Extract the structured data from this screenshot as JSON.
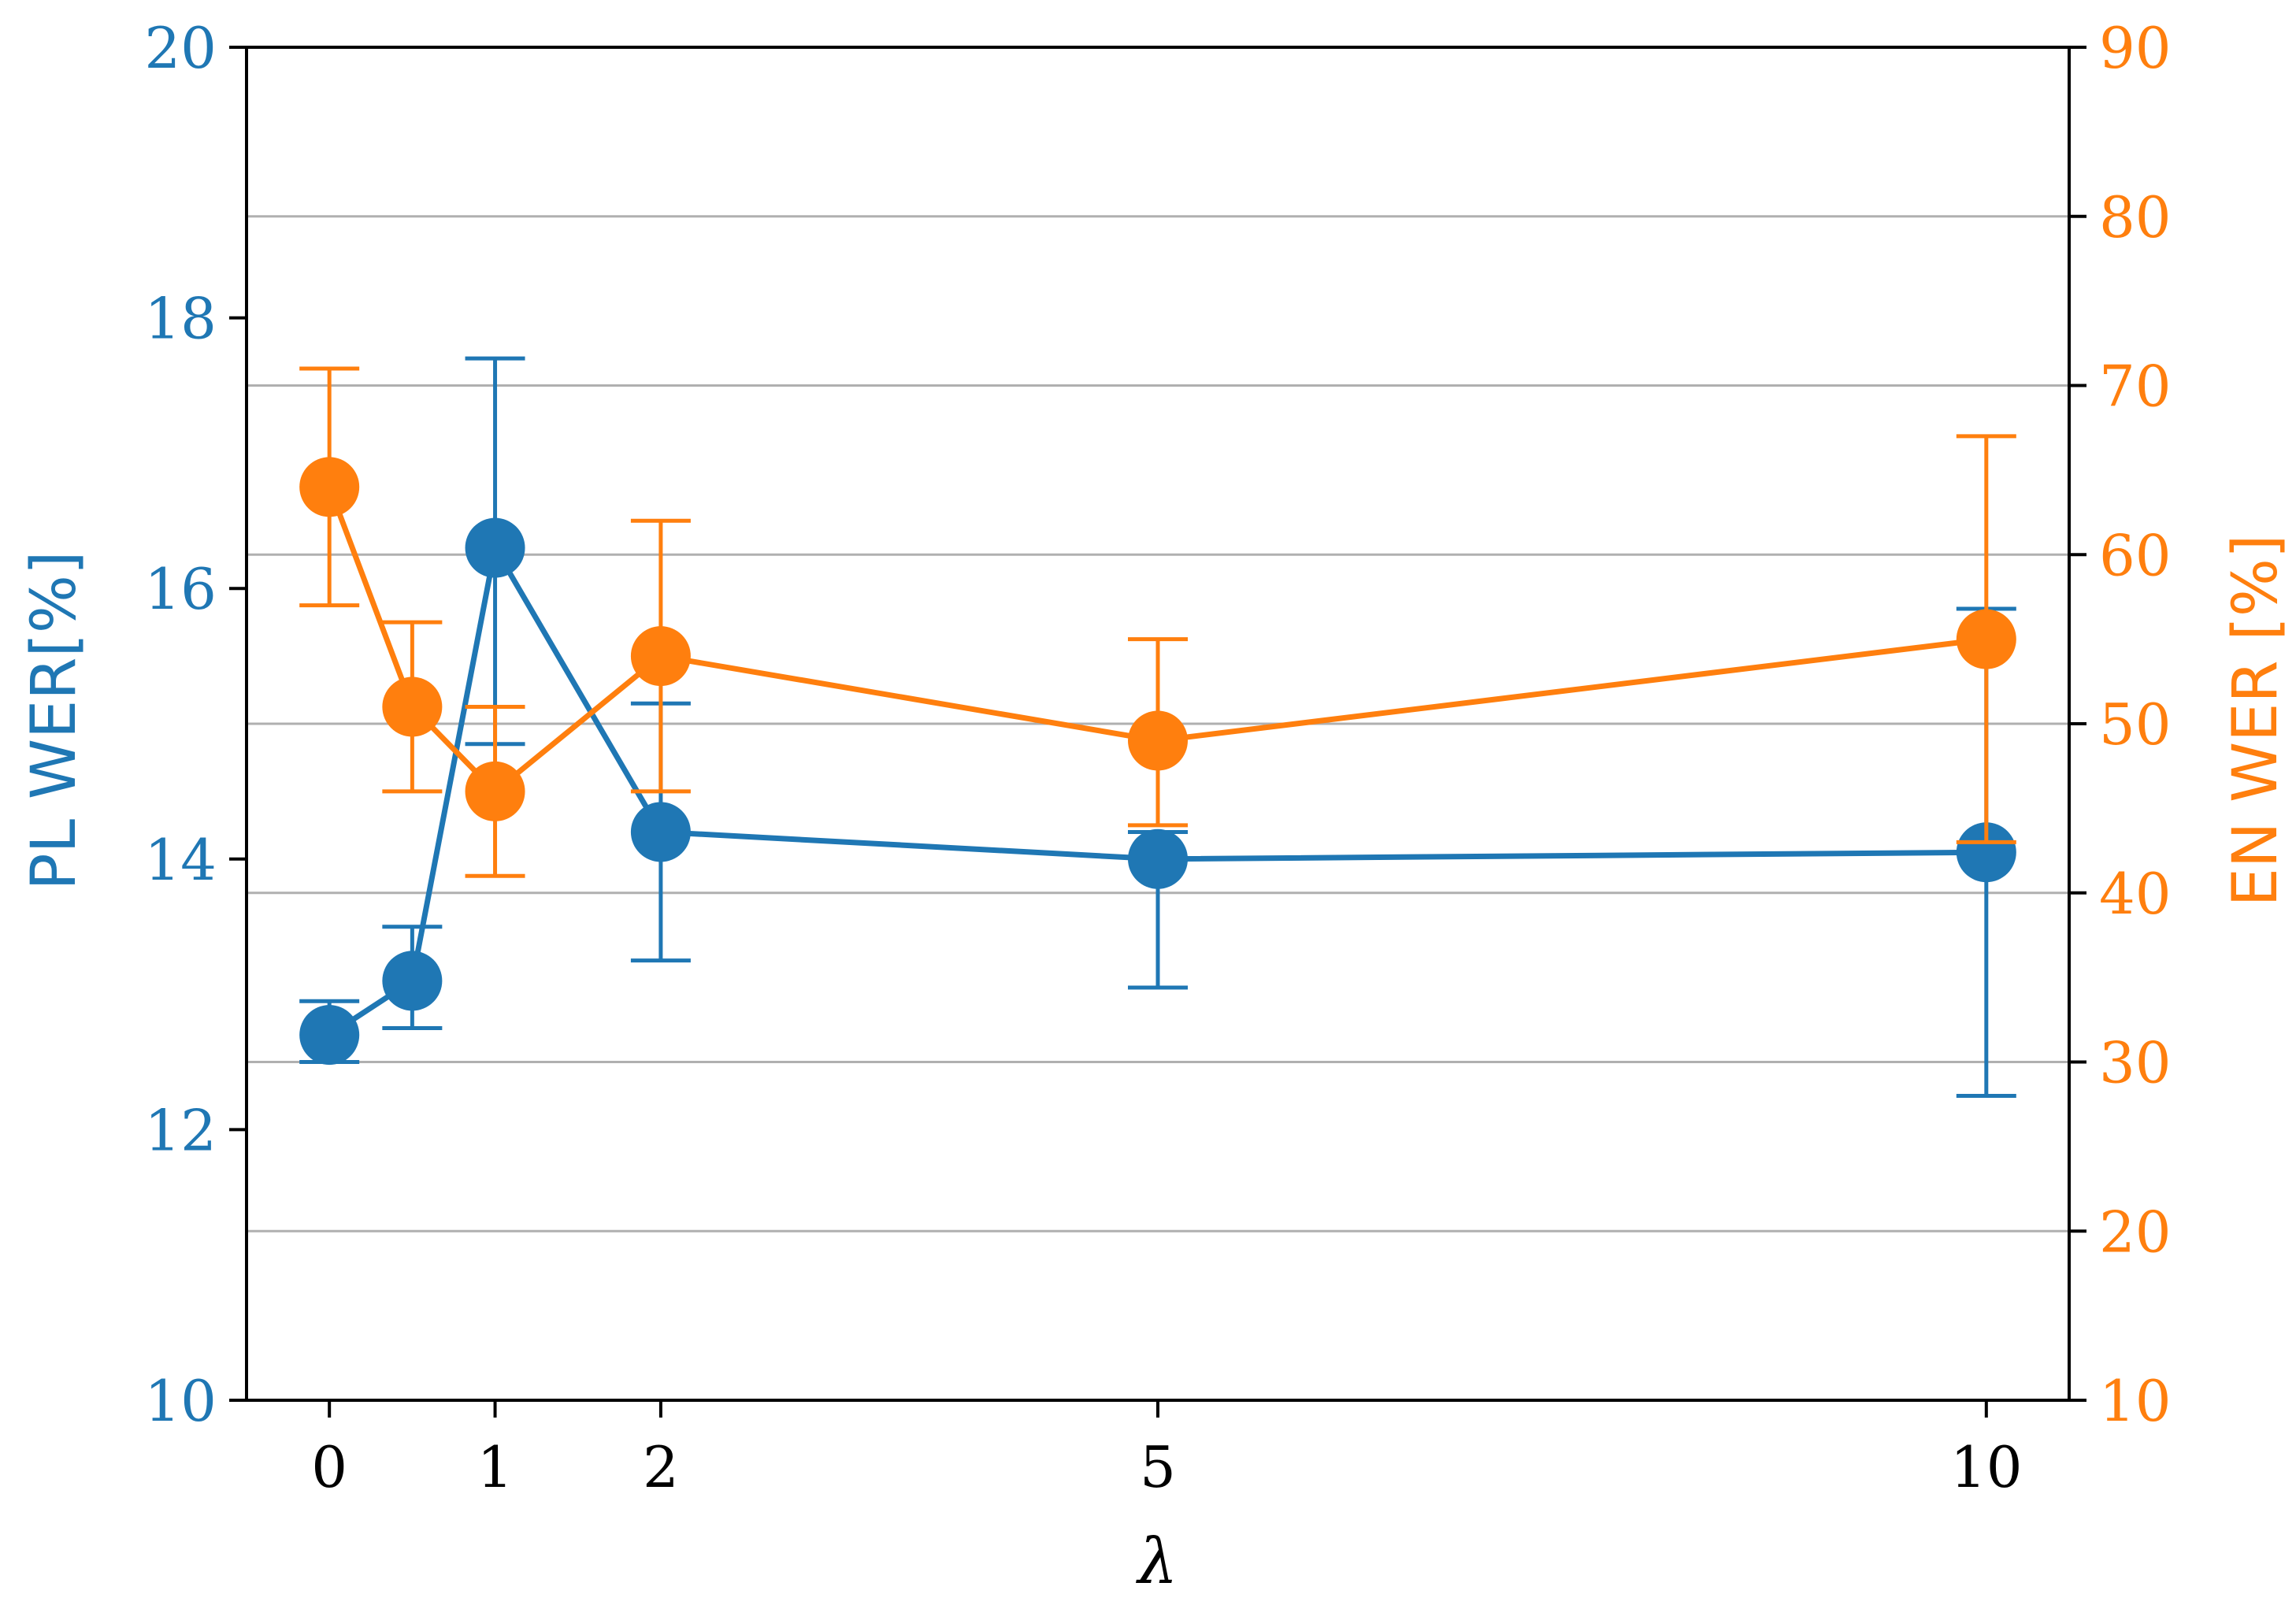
{
  "chart_data": {
    "type": "line",
    "title": "",
    "xlabel": "λ",
    "ylabel_left": "PL WER[%]",
    "ylabel_right": "EN WER [%]",
    "x_ticks": [
      0,
      1,
      2,
      5,
      10
    ],
    "xlim": [
      -0.5,
      10.5
    ],
    "ylim_left": [
      10,
      20
    ],
    "ylim_right": [
      10,
      90
    ],
    "y_ticks_left": [
      10,
      12,
      14,
      16,
      18,
      20
    ],
    "y_ticks_right": [
      10,
      20,
      30,
      40,
      50,
      60,
      70,
      80,
      90
    ],
    "grid": "horizontal, aligned to right-axis ticks",
    "colors": {
      "pl": "#1f77b4",
      "en": "#ff7f0e",
      "grid": "#b0b0b0"
    },
    "series": [
      {
        "name": "PL WER",
        "axis": "left",
        "x": [
          0,
          0.5,
          1,
          2,
          5,
          10
        ],
        "y": [
          12.7,
          13.1,
          16.3,
          14.2,
          14.0,
          14.05
        ],
        "err_low": [
          12.5,
          12.75,
          14.85,
          13.25,
          13.05,
          12.25
        ],
        "err_high": [
          12.95,
          13.5,
          17.7,
          15.15,
          14.2,
          15.85
        ]
      },
      {
        "name": "EN WER",
        "axis": "right",
        "x": [
          0,
          0.5,
          1,
          2,
          5,
          10
        ],
        "y": [
          64,
          51,
          46,
          54,
          49,
          55
        ],
        "err_low": [
          57,
          46,
          41,
          46,
          44,
          43
        ],
        "err_high": [
          71,
          56,
          51,
          62,
          55,
          67
        ]
      }
    ]
  }
}
